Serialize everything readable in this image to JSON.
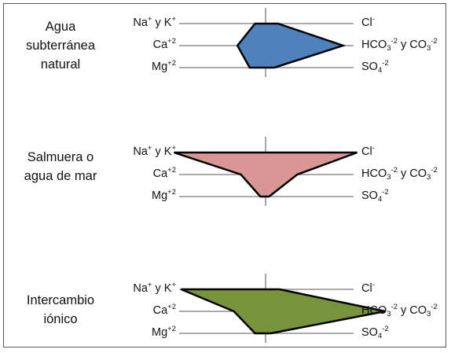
{
  "diagrams": [
    {
      "name": "Agua subterránea natural",
      "name_lines": [
        "Agua",
        "subterránea",
        "natural"
      ],
      "color": "#4f81bd",
      "left_axis": {
        "top": {
          "pre": "Na",
          "sup": "+",
          "mid": " y K",
          "sup2": "+"
        },
        "mid": {
          "pre": "Ca",
          "sup": "+2"
        },
        "bot": {
          "pre": "Mg",
          "sup": "+2"
        }
      },
      "right_axis": {
        "top": {
          "pre": "Cl",
          "sup": "-"
        },
        "mid": {
          "pre": "HCO",
          "sub": "3",
          "sup": "-2",
          "mid": " y CO",
          "sub2": "3",
          "sup2": "-2"
        },
        "bot": {
          "pre": "SO",
          "sub": "4",
          "sup": "-2"
        }
      },
      "values": {
        "left": [
          0.06,
          0.16,
          0.09
        ],
        "right": [
          0.07,
          0.44,
          0.05
        ]
      }
    },
    {
      "name": "Salmuera o agua de mar",
      "name_lines": [
        "Salmuera o",
        "agua de mar"
      ],
      "color": "#da9694",
      "left_axis": {
        "top": {
          "pre": "Na",
          "sup": "+",
          "mid": " y K",
          "sup2": "+"
        },
        "mid": {
          "pre": "Ca",
          "sup": "+2"
        },
        "bot": {
          "pre": "Mg",
          "sup": "+2"
        }
      },
      "right_axis": {
        "top": {
          "pre": "Cl",
          "sup": "-"
        },
        "mid": {
          "pre": "HCO",
          "sub": "3",
          "sup": "-2",
          "mid": " y CO",
          "sub2": "3",
          "sup2": "-2"
        },
        "bot": {
          "pre": "SO",
          "sub": "4",
          "sup": "-2"
        }
      },
      "values": {
        "left": [
          0.52,
          0.14,
          0.03
        ],
        "right": [
          0.52,
          0.18,
          0.02
        ]
      }
    },
    {
      "name": "Intercambio iónico",
      "name_lines": [
        "Intercambio",
        "iónico"
      ],
      "color": "#77933c",
      "left_axis": {
        "top": {
          "pre": "Na",
          "sup": "+",
          "mid": " y K",
          "sup2": "+"
        },
        "mid": {
          "pre": "Ca",
          "sup": "+2"
        },
        "bot": {
          "pre": "Mg",
          "sup": "+2"
        }
      },
      "right_axis": {
        "top": {
          "pre": "Cl",
          "sup": "-"
        },
        "mid": {
          "pre": "HCO",
          "sub": "3",
          "sup": "-2",
          "mid": " y CO",
          "sub2": "3",
          "sup2": "-2"
        },
        "bot": {
          "pre": "SO",
          "sub": "4",
          "sup": "-2"
        }
      },
      "values": {
        "left": [
          0.48,
          0.18,
          0.06
        ],
        "right": [
          0.08,
          0.68,
          0.03
        ]
      }
    }
  ]
}
